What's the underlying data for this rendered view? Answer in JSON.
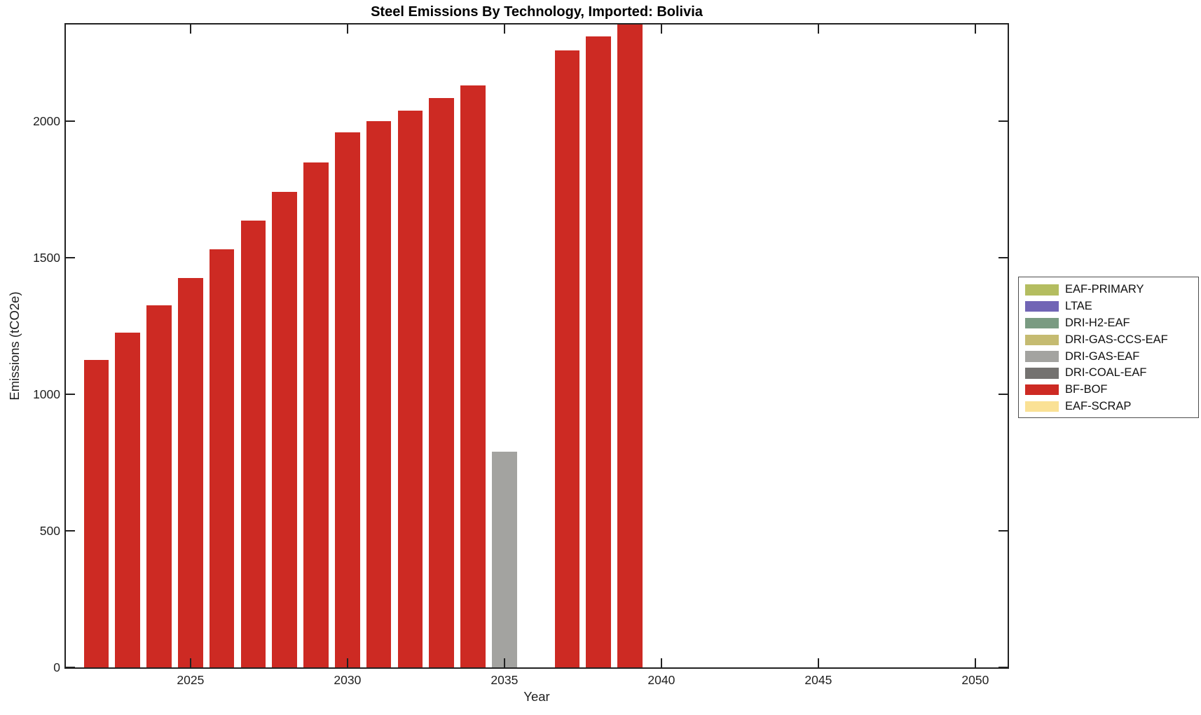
{
  "figure": {
    "background": "#ffffff"
  },
  "chart_data": {
    "type": "bar",
    "title": "Steel Emissions By Technology, Imported: Bolivia",
    "xlabel": "Year",
    "ylabel": "Emissions (tCO2e)",
    "xlim": [
      2021.03,
      2051.03
    ],
    "ylim": [
      0,
      2354
    ],
    "x_ticks": [
      2025,
      2030,
      2035,
      2040,
      2045,
      2050
    ],
    "y_ticks": [
      0,
      500,
      1000,
      1500,
      2000
    ],
    "grid": false,
    "bar_width_years": 0.8,
    "bars": [
      {
        "year": 2022,
        "value": 1125,
        "tech": "BF-BOF"
      },
      {
        "year": 2023,
        "value": 1225,
        "tech": "BF-BOF"
      },
      {
        "year": 2024,
        "value": 1325,
        "tech": "BF-BOF"
      },
      {
        "year": 2025,
        "value": 1425,
        "tech": "BF-BOF"
      },
      {
        "year": 2026,
        "value": 1530,
        "tech": "BF-BOF"
      },
      {
        "year": 2027,
        "value": 1635,
        "tech": "BF-BOF"
      },
      {
        "year": 2028,
        "value": 1740,
        "tech": "BF-BOF"
      },
      {
        "year": 2029,
        "value": 1850,
        "tech": "BF-BOF"
      },
      {
        "year": 2030,
        "value": 1960,
        "tech": "BF-BOF"
      },
      {
        "year": 2031,
        "value": 2000,
        "tech": "BF-BOF"
      },
      {
        "year": 2032,
        "value": 2040,
        "tech": "BF-BOF"
      },
      {
        "year": 2033,
        "value": 2085,
        "tech": "BF-BOF"
      },
      {
        "year": 2034,
        "value": 2130,
        "tech": "BF-BOF"
      },
      {
        "year": 2035,
        "value": 790,
        "tech": "DRI-GAS-EAF"
      },
      {
        "year": 2037,
        "value": 2260,
        "tech": "BF-BOF"
      },
      {
        "year": 2038,
        "value": 2310,
        "tech": "BF-BOF"
      },
      {
        "year": 2039,
        "value": 2355,
        "tech": "BF-BOF"
      }
    ],
    "legend_position": "right-outside",
    "legend_entries": [
      {
        "label": "EAF-PRIMARY",
        "color": "#b4bd60"
      },
      {
        "label": "LTAE",
        "color": "#7165b5"
      },
      {
        "label": "DRI-H2-EAF",
        "color": "#7a9b82"
      },
      {
        "label": "DRI-GAS-CCS-EAF",
        "color": "#c5bb71"
      },
      {
        "label": "DRI-GAS-EAF",
        "color": "#a3a3a0"
      },
      {
        "label": "DRI-COAL-EAF",
        "color": "#747270"
      },
      {
        "label": "BF-BOF",
        "color": "#cd2a23"
      },
      {
        "label": "EAF-SCRAP",
        "color": "#fae195"
      }
    ],
    "series_colors": {
      "EAF-PRIMARY": "#b4bd60",
      "LTAE": "#7165b5",
      "DRI-H2-EAF": "#7a9b82",
      "DRI-GAS-CCS-EAF": "#c5bb71",
      "DRI-GAS-EAF": "#a3a3a0",
      "DRI-COAL-EAF": "#747270",
      "BF-BOF": "#cd2a23",
      "EAF-SCRAP": "#fae195"
    }
  }
}
